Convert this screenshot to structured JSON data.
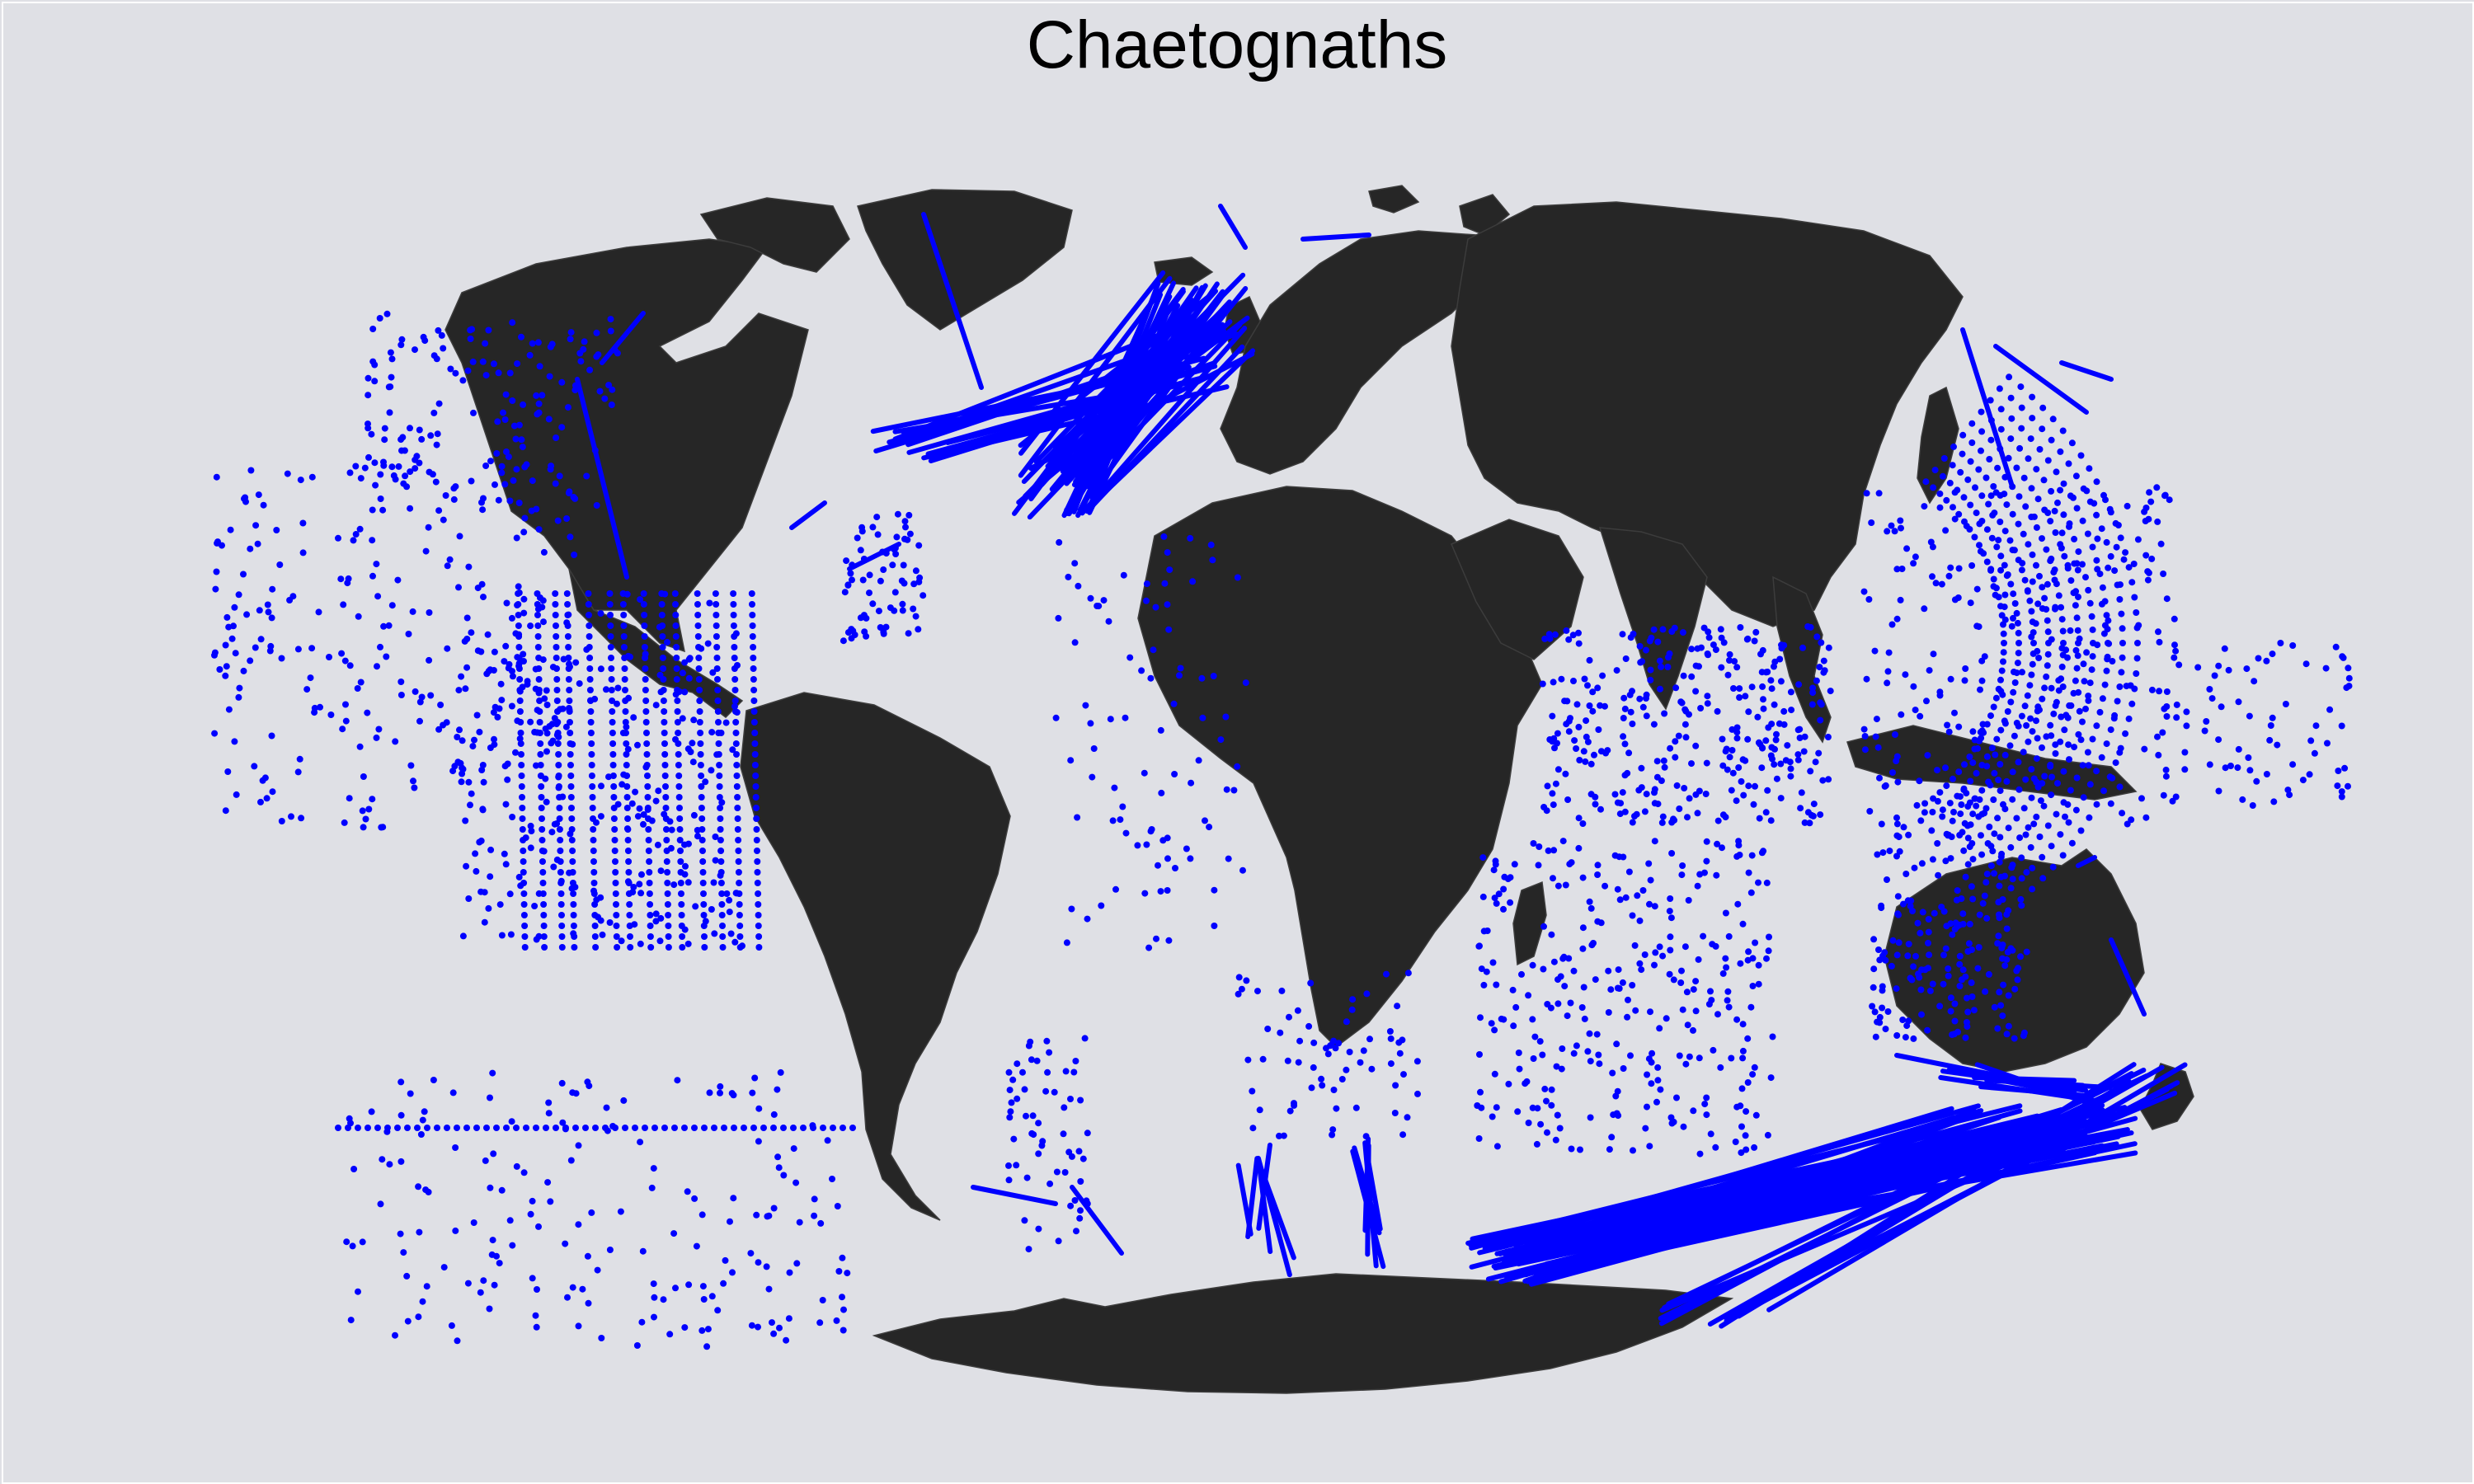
{
  "title": "Chaetognaths",
  "colors": {
    "background": "#dfe0e5",
    "land": "#262626",
    "observations": "#0000ff"
  },
  "land_regions": [
    "north-america",
    "greenland",
    "south-america",
    "europe",
    "africa",
    "asia",
    "arabia",
    "india",
    "southeast-asia",
    "australia",
    "antarctica",
    "madagascar",
    "japan",
    "new-zealand",
    "indonesia",
    "british-isles",
    "iceland",
    "svalbard",
    "novaya-zemlya",
    "arctic-archipelago"
  ],
  "observation_layers": [
    "survey-tracks",
    "station-points"
  ]
}
